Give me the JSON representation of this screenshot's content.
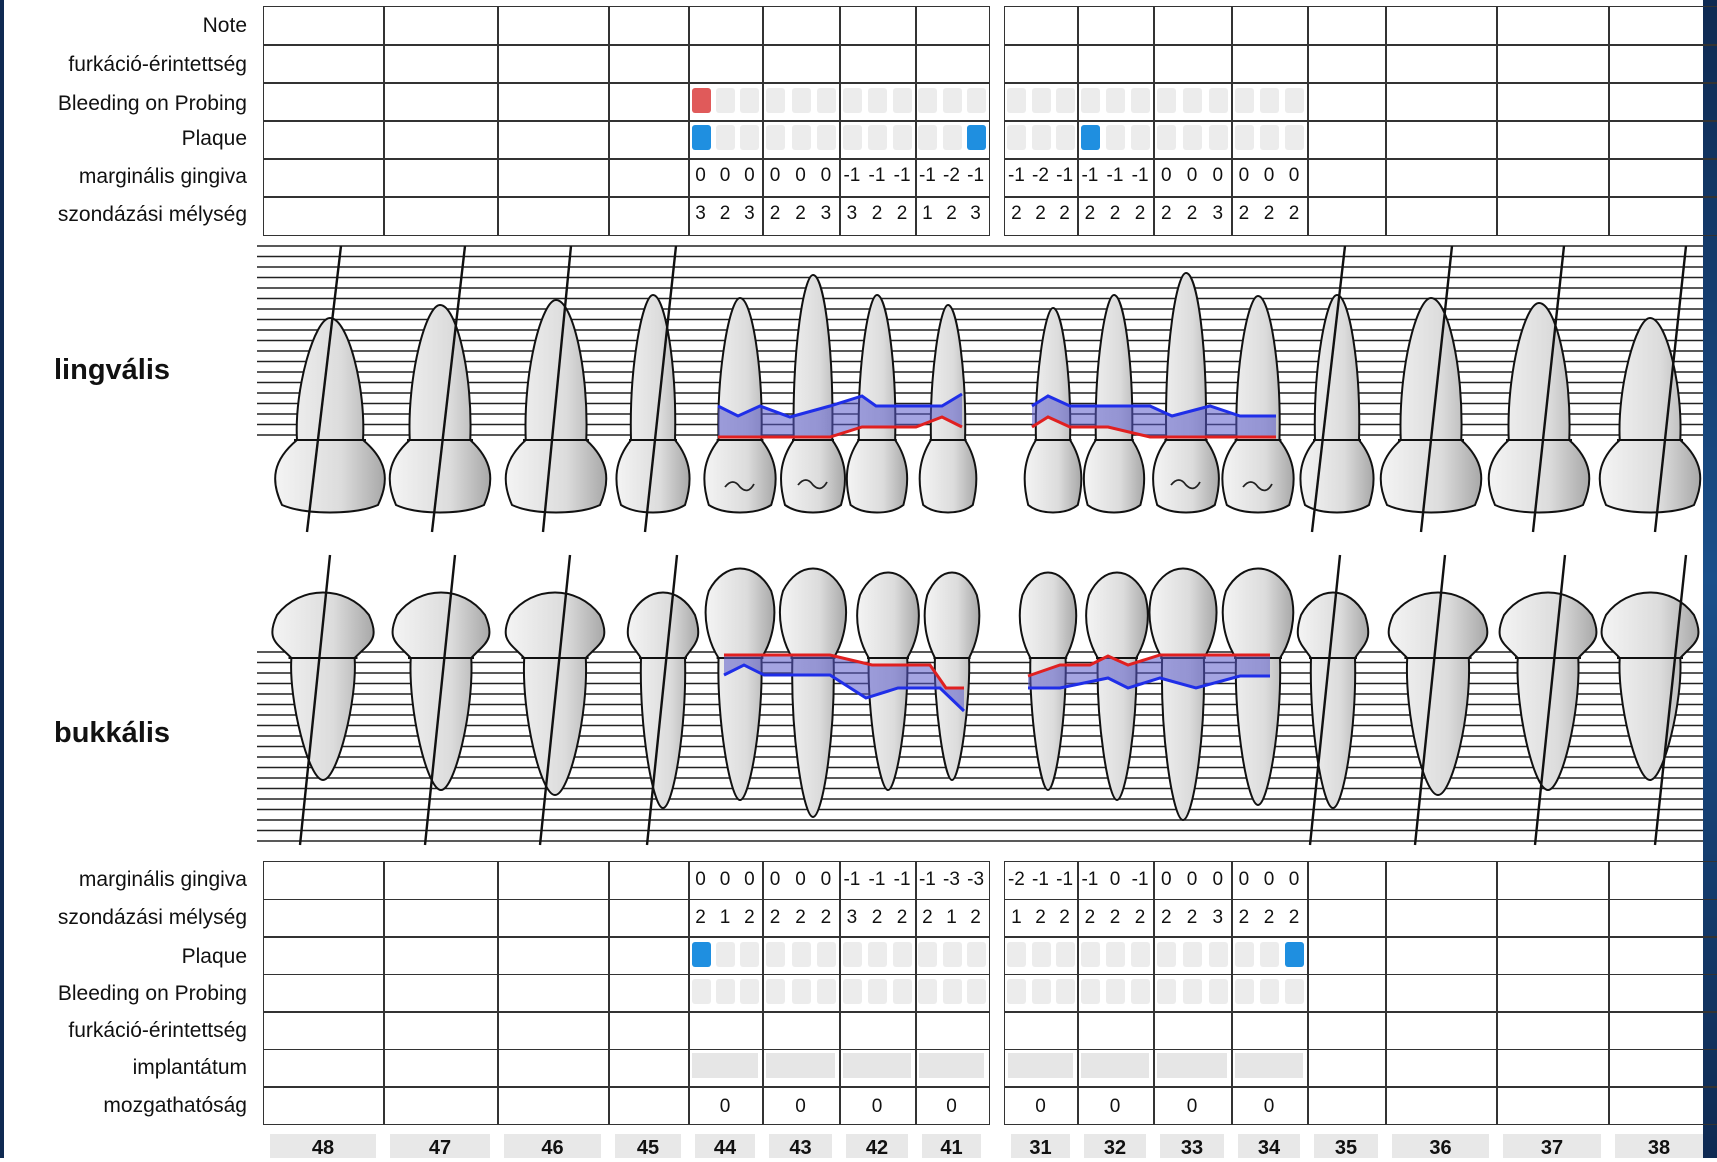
{
  "side_labels": {
    "lingual": "lingvális",
    "buccal": "bukkális"
  },
  "upper_row_labels": [
    "Note",
    "furkáció-érintettség",
    "Bleeding on Probing",
    "Plaque",
    "marginális gingiva",
    "szondázási mélység"
  ],
  "lower_row_labels": [
    "marginális gingiva",
    "szondázási mélység",
    "Plaque",
    "Bleeding on Probing",
    "furkáció-érintettség",
    "implantátum",
    "mozgathatóság"
  ],
  "tooth_numbers": [
    "48",
    "47",
    "46",
    "45",
    "44",
    "43",
    "42",
    "41",
    "31",
    "32",
    "33",
    "34",
    "35",
    "36",
    "37",
    "38"
  ],
  "colors": {
    "bleeding": "#e05a5a",
    "plaque": "#1f8fe0",
    "gingiva_line": "#e02020",
    "pocket_line": "#1f2ee8",
    "pocket_fill": "#5a5acb"
  },
  "upper": {
    "gingiva": [
      "0",
      "0",
      "0",
      "0",
      "0",
      "0",
      "-1",
      "-1",
      "-1",
      "-1",
      "-2",
      "-1",
      "-1",
      "-2",
      "-1",
      "-1",
      "-1",
      "-1",
      "0",
      "0",
      "0",
      "0",
      "0",
      "0"
    ],
    "probing": [
      "3",
      "2",
      "3",
      "2",
      "2",
      "3",
      "3",
      "2",
      "2",
      "1",
      "2",
      "3",
      "2",
      "2",
      "2",
      "2",
      "2",
      "2",
      "2",
      "2",
      "3",
      "2",
      "2",
      "2"
    ],
    "bleeding": [
      1,
      0,
      0,
      0,
      0,
      0,
      0,
      0,
      0,
      0,
      0,
      0,
      0,
      0,
      0,
      0,
      0,
      0,
      0,
      0,
      0,
      0,
      0,
      0
    ],
    "plaque": [
      1,
      0,
      0,
      0,
      0,
      0,
      0,
      0,
      0,
      0,
      0,
      1,
      0,
      0,
      0,
      1,
      0,
      0,
      0,
      0,
      0,
      0,
      0,
      0
    ]
  },
  "lower": {
    "gingiva": [
      "0",
      "0",
      "0",
      "0",
      "0",
      "0",
      "-1",
      "-1",
      "-1",
      "-1",
      "-3",
      "-3",
      "-2",
      "-1",
      "-1",
      "-1",
      "0",
      "-1",
      "0",
      "0",
      "0",
      "0",
      "0",
      "0"
    ],
    "probing": [
      "2",
      "1",
      "2",
      "2",
      "2",
      "2",
      "3",
      "2",
      "2",
      "2",
      "1",
      "2",
      "1",
      "2",
      "2",
      "2",
      "2",
      "2",
      "2",
      "2",
      "3",
      "2",
      "2",
      "2"
    ],
    "plaque": [
      1,
      0,
      0,
      0,
      0,
      0,
      0,
      0,
      0,
      0,
      0,
      0,
      0,
      0,
      0,
      0,
      0,
      0,
      0,
      0,
      0,
      0,
      0,
      1
    ],
    "bleeding": [
      0,
      0,
      0,
      0,
      0,
      0,
      0,
      0,
      0,
      0,
      0,
      0,
      0,
      0,
      0,
      0,
      0,
      0,
      0,
      0,
      0,
      0,
      0,
      0
    ],
    "mobility": [
      "0",
      "0",
      "0",
      "0",
      "0",
      "0",
      "0",
      "0"
    ]
  }
}
